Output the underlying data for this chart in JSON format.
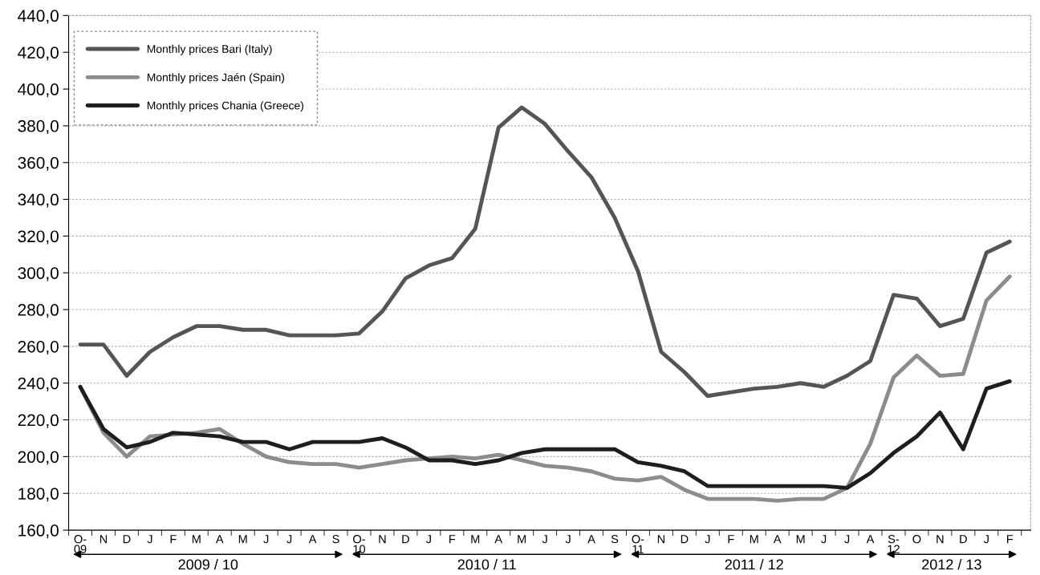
{
  "chart_data": {
    "type": "line",
    "categories": [
      "O-\n09",
      "N",
      "D",
      "J",
      "F",
      "M",
      "A",
      "M",
      "J",
      "J",
      "A",
      "S",
      "O-\n10",
      "N",
      "D",
      "J",
      "F",
      "M",
      "A",
      "M",
      "J",
      "J",
      "A",
      "S",
      "O-\n11",
      "N",
      "D",
      "J",
      "F",
      "M",
      "A",
      "M",
      "J",
      "J",
      "A",
      "S-\n12",
      "O",
      "N",
      "D",
      "J",
      "F"
    ],
    "series": [
      {
        "name": "Monthly prices Bari (Italy)",
        "color": "#555555",
        "values": [
          261,
          261,
          244,
          257,
          265,
          271,
          271,
          269,
          269,
          266,
          266,
          266,
          267,
          279,
          297,
          304,
          308,
          324,
          379,
          390,
          381,
          366,
          352,
          330,
          301,
          257,
          246,
          233,
          235,
          237,
          238,
          240,
          238,
          244,
          252,
          288,
          286,
          271,
          275,
          311,
          317
        ]
      },
      {
        "name": "Monthly prices Jaén (Spain)",
        "color": "#8c8c8c",
        "values": [
          238,
          213,
          200,
          211,
          212,
          213,
          215,
          207,
          200,
          197,
          196,
          196,
          194,
          196,
          198,
          199,
          200,
          199,
          201,
          198,
          195,
          194,
          192,
          188,
          187,
          189,
          182,
          177,
          177,
          177,
          176,
          177,
          177,
          183,
          207,
          243,
          255,
          244,
          245,
          285,
          298
        ]
      },
      {
        "name": "Monthly prices Chania (Greece)",
        "color": "#1e1e1e",
        "values": [
          238,
          215,
          205,
          208,
          213,
          212,
          211,
          208,
          208,
          204,
          208,
          208,
          208,
          210,
          205,
          198,
          198,
          196,
          198,
          202,
          204,
          204,
          204,
          204,
          197,
          195,
          192,
          184,
          184,
          184,
          184,
          184,
          184,
          183,
          191,
          202,
          211,
          224,
          204,
          237,
          241
        ]
      }
    ],
    "ylim": [
      160,
      440
    ],
    "yticks": [
      {
        "value": 160,
        "label": "160,0"
      },
      {
        "value": 180,
        "label": "180,0"
      },
      {
        "value": 200,
        "label": "200,0"
      },
      {
        "value": 220,
        "label": "220,0"
      },
      {
        "value": 240,
        "label": "240,0"
      },
      {
        "value": 260,
        "label": "260,0"
      },
      {
        "value": 280,
        "label": "280,0"
      },
      {
        "value": 300,
        "label": "300,0"
      },
      {
        "value": 320,
        "label": "320,0"
      },
      {
        "value": 340,
        "label": "340,0"
      },
      {
        "value": 360,
        "label": "360,0"
      },
      {
        "value": 380,
        "label": "380,0"
      },
      {
        "value": 400,
        "label": "400,0"
      },
      {
        "value": 420,
        "label": "420,0"
      },
      {
        "value": 440,
        "label": "440,0"
      }
    ],
    "grid": "y",
    "legend": "top left",
    "marker": "none",
    "line_style": "solid",
    "annotations": [
      "2009 / 10",
      "2010 / 11",
      "2011 / 12",
      "2012 / 13"
    ]
  }
}
